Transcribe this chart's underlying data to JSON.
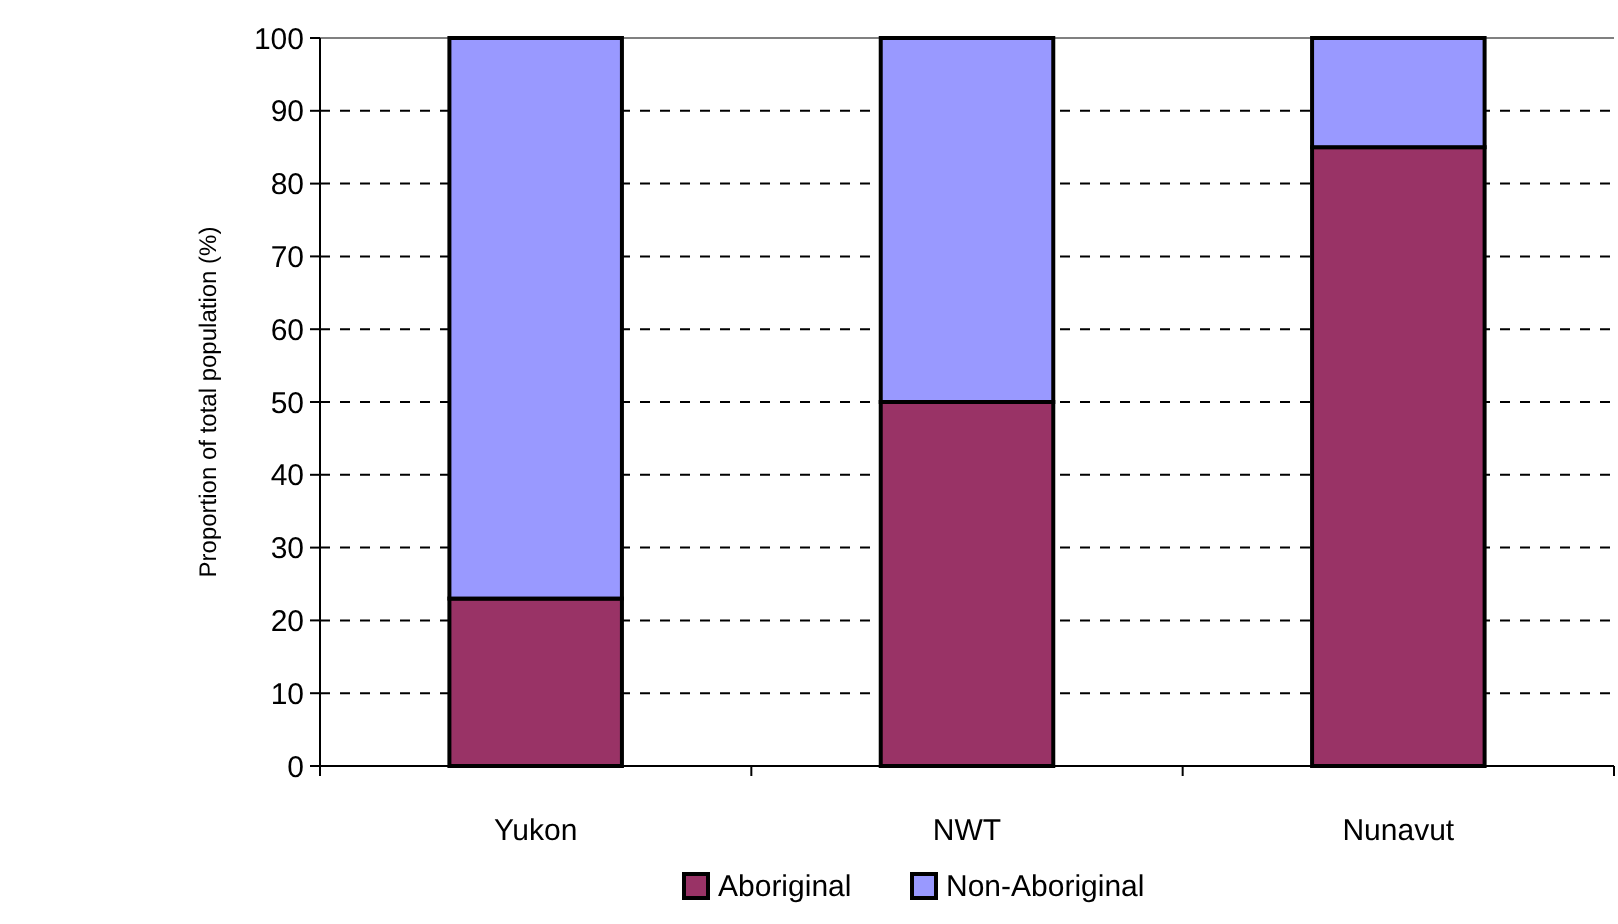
{
  "chart_data": {
    "type": "bar",
    "stacked": true,
    "ylabel": "Proportion of total population (%)",
    "categories": [
      "Yukon",
      "NWT",
      "Nunavut"
    ],
    "series": [
      {
        "name": "Aboriginal",
        "color": "#993366",
        "values": [
          23,
          50,
          85
        ]
      },
      {
        "name": "Non-Aboriginal",
        "color": "#9999ff",
        "values": [
          77,
          50,
          15
        ]
      }
    ],
    "ylim": [
      0,
      100
    ],
    "yticks": [
      0,
      10,
      20,
      30,
      40,
      50,
      60,
      70,
      80,
      90,
      100
    ],
    "grid": "y",
    "legend": "bottom"
  }
}
